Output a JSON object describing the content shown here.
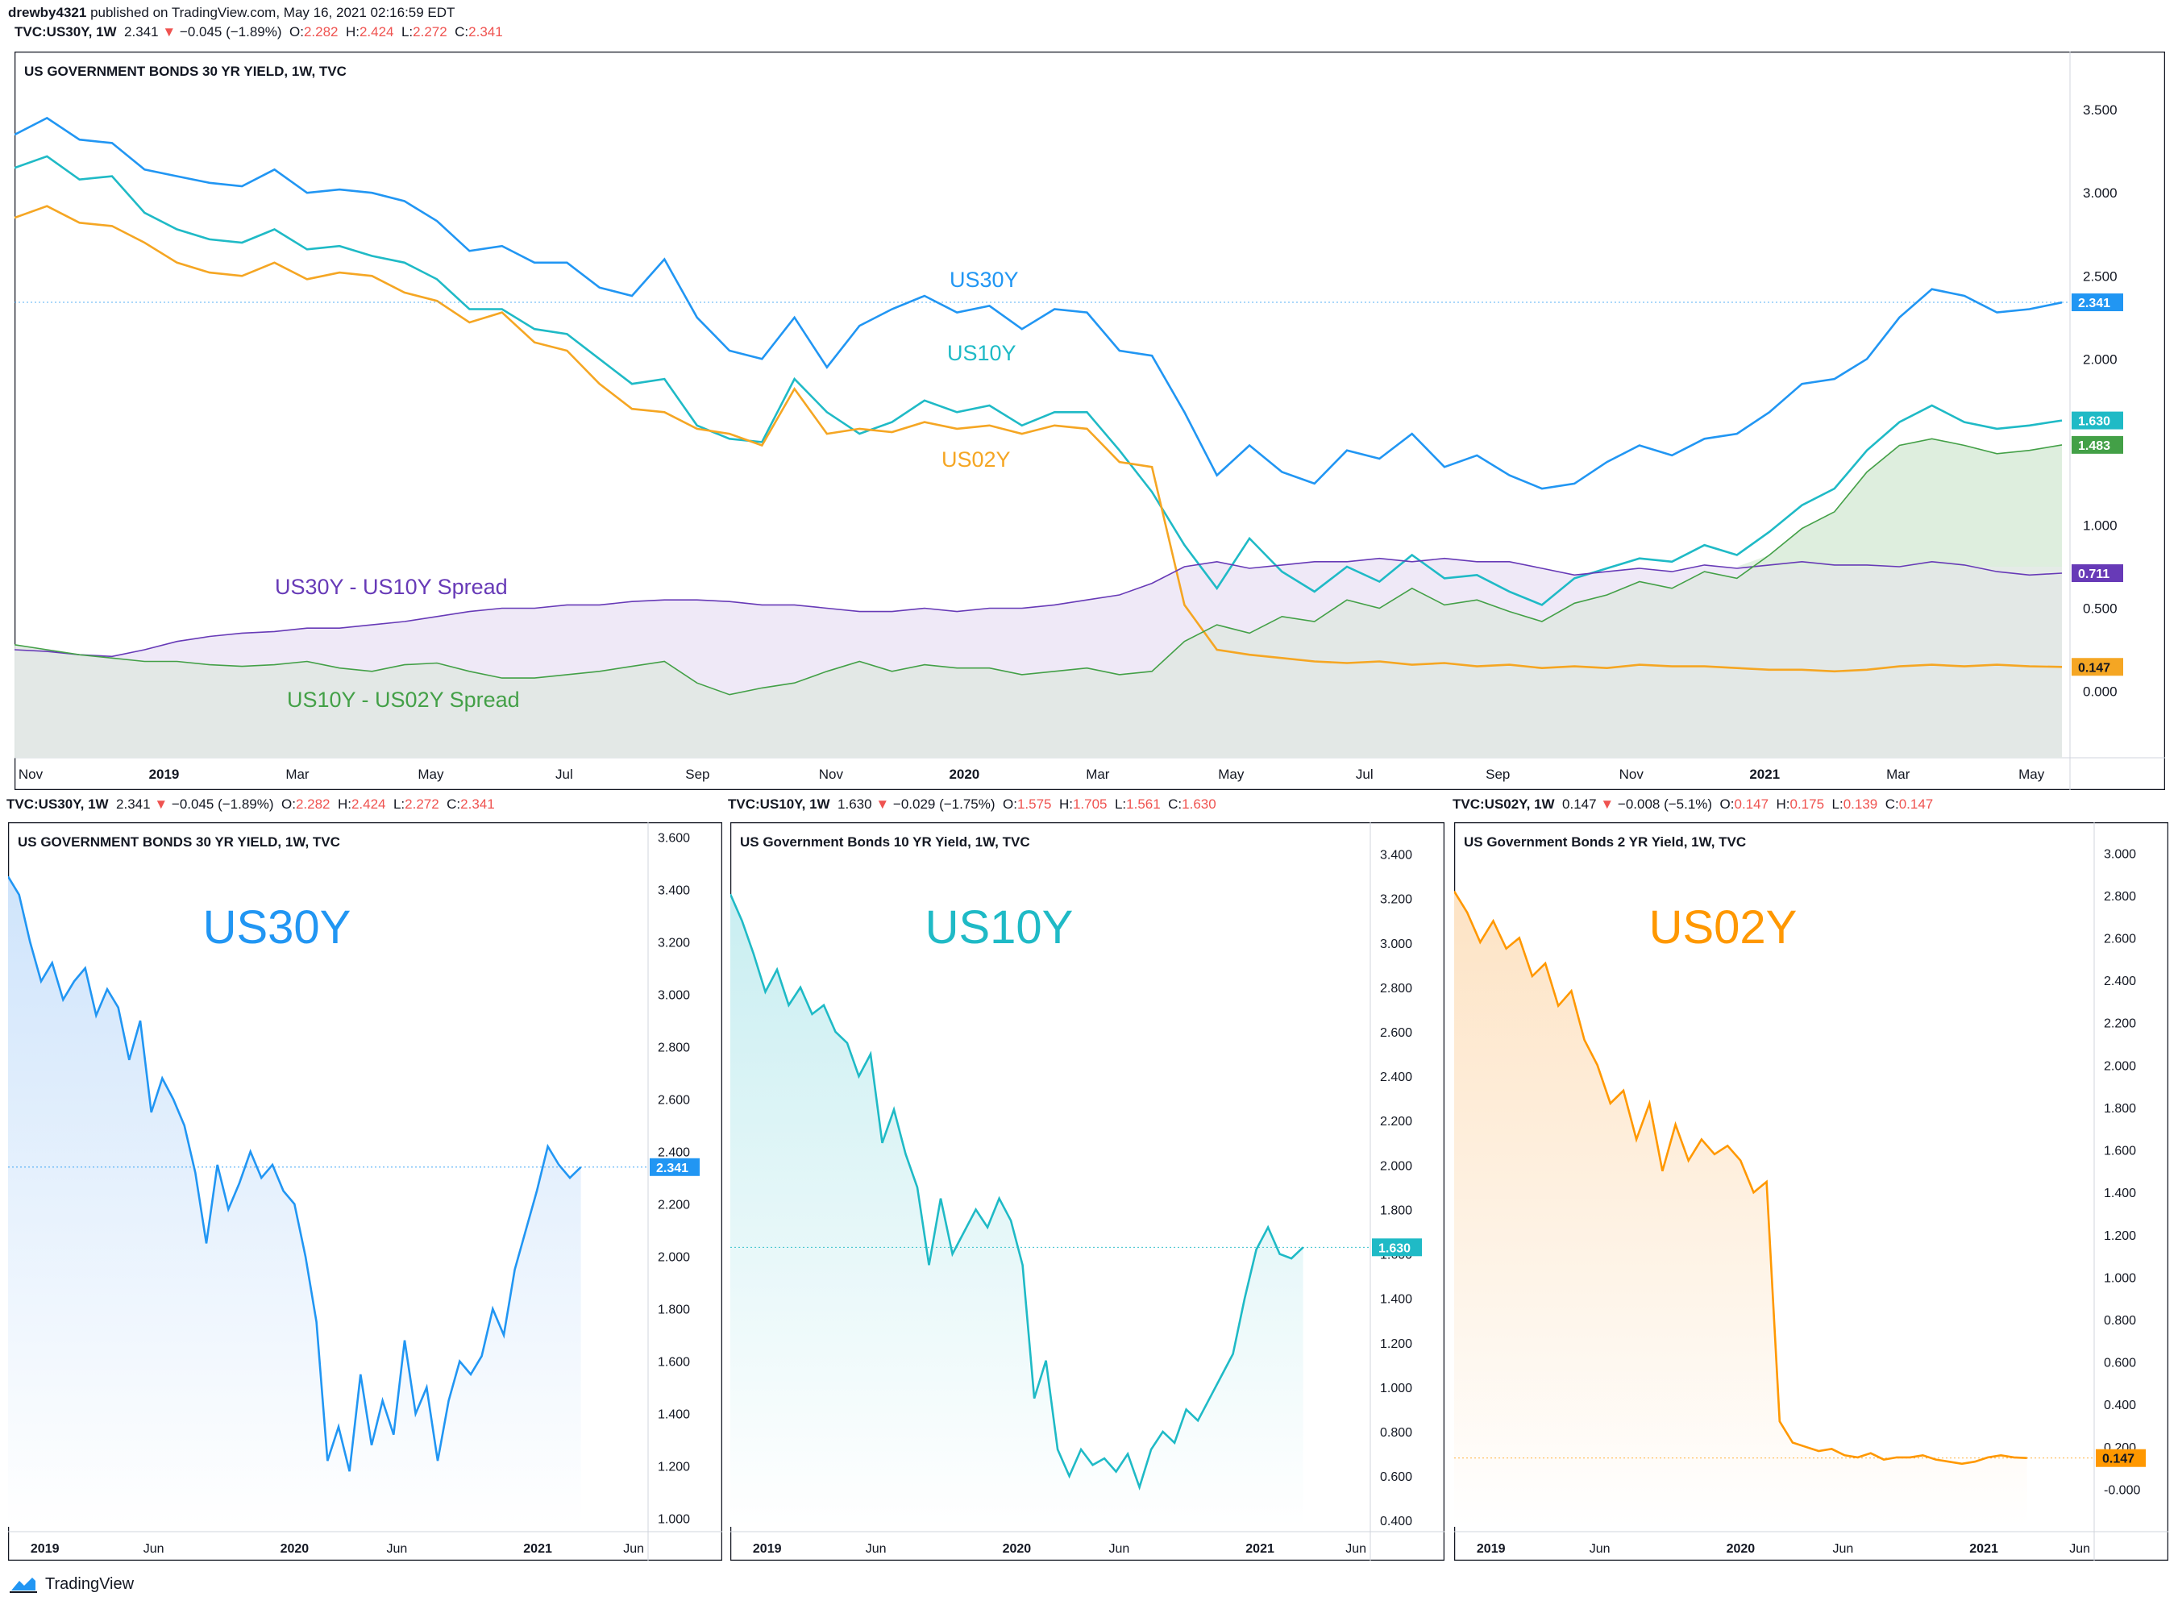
{
  "header": {
    "user": "drewby4321",
    "published": " published on TradingView.com, May 16, 2021 02:16:59 EDT"
  },
  "brand": "TradingView",
  "colors": {
    "us30": "#2196f3",
    "us10": "#1fbac6",
    "us02": "#f5a623",
    "us02fill": "#ff9800",
    "spread1": "#673ab7",
    "spread2": "#43a047",
    "axis": "#131722",
    "grid": "#f0f3fa"
  },
  "ohlc": [
    {
      "sym": "TVC:US30Y, 1W",
      "last": "2.341",
      "chg": "▼",
      "chgv": "−0.045 (−1.89%)",
      "o_l": "O:",
      "o": "2.282",
      "h_l": "H:",
      "h": "2.424",
      "l_l": "L:",
      "l": "2.272",
      "c_l": "C:",
      "c": "2.341"
    },
    {
      "sym": "TVC:US30Y, 1W",
      "last": "2.341",
      "chg": "▼",
      "chgv": "−0.045 (−1.89%)",
      "o_l": "O:",
      "o": "2.282",
      "h_l": "H:",
      "h": "2.424",
      "l_l": "L:",
      "l": "2.272",
      "c_l": "C:",
      "c": "2.341"
    },
    {
      "sym": "TVC:US10Y, 1W",
      "last": "1.630",
      "chg": "▼",
      "chgv": "−0.029 (−1.75%)",
      "o_l": "O:",
      "o": "1.575",
      "h_l": "H:",
      "h": "1.705",
      "l_l": "L:",
      "l": "1.561",
      "c_l": "C:",
      "c": "1.630"
    },
    {
      "sym": "TVC:US02Y, 1W",
      "last": "0.147",
      "chg": "▼",
      "chgv": "−0.008 (−5.1%)",
      "o_l": "O:",
      "o": "0.147",
      "h_l": "H:",
      "h": "0.175",
      "l_l": "L:",
      "l": "0.139",
      "c_l": "C:",
      "c": "0.147"
    }
  ],
  "chart_data": [
    {
      "type": "line",
      "title": "US GOVERNMENT BONDS 30 YR YIELD, 1W, TVC",
      "ylim": [
        -0.4,
        3.85
      ],
      "yticks": [
        "3.500",
        "3.000",
        "2.500",
        "2.000",
        "1.000",
        "0.500",
        "0.000"
      ],
      "xticks": [
        "Nov",
        "2019",
        "Mar",
        "May",
        "Jul",
        "Sep",
        "Nov",
        "2020",
        "Mar",
        "May",
        "Jul",
        "Sep",
        "Nov",
        "2021",
        "Mar",
        "May"
      ],
      "annotations": [
        "US30Y",
        "US10Y",
        "US02Y",
        "US30Y - US10Y Spread",
        "US10Y - US02Y Spread"
      ],
      "last_values": [
        "2.341",
        "1.630",
        "1.483",
        "0.711",
        "0.147"
      ],
      "series": [
        {
          "name": "US30Y",
          "values": [
            3.35,
            3.45,
            3.32,
            3.3,
            3.14,
            3.1,
            3.06,
            3.04,
            3.14,
            3.0,
            3.02,
            3.0,
            2.95,
            2.83,
            2.65,
            2.68,
            2.58,
            2.58,
            2.43,
            2.38,
            2.6,
            2.25,
            2.05,
            2.0,
            2.25,
            1.95,
            2.2,
            2.3,
            2.38,
            2.28,
            2.32,
            2.18,
            2.3,
            2.28,
            2.05,
            2.02,
            1.68,
            1.3,
            1.48,
            1.32,
            1.25,
            1.45,
            1.4,
            1.55,
            1.35,
            1.42,
            1.3,
            1.22,
            1.25,
            1.38,
            1.48,
            1.42,
            1.52,
            1.55,
            1.68,
            1.85,
            1.88,
            2.0,
            2.25,
            2.42,
            2.38,
            2.28,
            2.3,
            2.34
          ]
        },
        {
          "name": "US10Y",
          "values": [
            3.15,
            3.22,
            3.08,
            3.1,
            2.88,
            2.78,
            2.72,
            2.7,
            2.78,
            2.66,
            2.68,
            2.62,
            2.58,
            2.48,
            2.3,
            2.3,
            2.18,
            2.15,
            2.0,
            1.85,
            1.88,
            1.6,
            1.52,
            1.5,
            1.88,
            1.68,
            1.55,
            1.62,
            1.75,
            1.68,
            1.72,
            1.6,
            1.68,
            1.68,
            1.45,
            1.2,
            0.88,
            0.62,
            0.92,
            0.72,
            0.6,
            0.75,
            0.66,
            0.82,
            0.68,
            0.7,
            0.6,
            0.52,
            0.68,
            0.74,
            0.8,
            0.78,
            0.88,
            0.82,
            0.96,
            1.12,
            1.22,
            1.45,
            1.62,
            1.72,
            1.62,
            1.58,
            1.6,
            1.63
          ]
        },
        {
          "name": "US02Y",
          "values": [
            2.85,
            2.92,
            2.82,
            2.8,
            2.7,
            2.58,
            2.52,
            2.5,
            2.58,
            2.48,
            2.52,
            2.5,
            2.4,
            2.35,
            2.22,
            2.28,
            2.1,
            2.05,
            1.85,
            1.7,
            1.68,
            1.58,
            1.55,
            1.48,
            1.82,
            1.55,
            1.58,
            1.56,
            1.62,
            1.58,
            1.6,
            1.55,
            1.6,
            1.58,
            1.38,
            1.35,
            0.52,
            0.25,
            0.22,
            0.2,
            0.18,
            0.17,
            0.18,
            0.16,
            0.17,
            0.15,
            0.16,
            0.14,
            0.15,
            0.14,
            0.16,
            0.15,
            0.15,
            0.14,
            0.13,
            0.13,
            0.12,
            0.13,
            0.15,
            0.16,
            0.15,
            0.16,
            0.15,
            0.147
          ]
        },
        {
          "name": "US30Y - US10Y Spread",
          "values": [
            0.25,
            0.24,
            0.22,
            0.21,
            0.25,
            0.3,
            0.33,
            0.35,
            0.36,
            0.38,
            0.38,
            0.4,
            0.42,
            0.45,
            0.48,
            0.5,
            0.5,
            0.52,
            0.52,
            0.54,
            0.55,
            0.55,
            0.54,
            0.52,
            0.52,
            0.5,
            0.48,
            0.48,
            0.5,
            0.48,
            0.5,
            0.5,
            0.52,
            0.55,
            0.58,
            0.65,
            0.75,
            0.78,
            0.74,
            0.76,
            0.78,
            0.78,
            0.8,
            0.78,
            0.8,
            0.78,
            0.78,
            0.74,
            0.7,
            0.72,
            0.74,
            0.72,
            0.76,
            0.74,
            0.76,
            0.78,
            0.76,
            0.76,
            0.75,
            0.78,
            0.76,
            0.72,
            0.7,
            0.711
          ]
        },
        {
          "name": "US10Y - US02Y Spread",
          "values": [
            0.28,
            0.25,
            0.22,
            0.2,
            0.18,
            0.18,
            0.16,
            0.15,
            0.16,
            0.18,
            0.14,
            0.12,
            0.16,
            0.17,
            0.12,
            0.08,
            0.08,
            0.1,
            0.12,
            0.15,
            0.18,
            0.05,
            -0.02,
            0.02,
            0.05,
            0.12,
            0.18,
            0.12,
            0.16,
            0.14,
            0.14,
            0.1,
            0.12,
            0.14,
            0.1,
            0.12,
            0.3,
            0.4,
            0.35,
            0.45,
            0.42,
            0.55,
            0.5,
            0.62,
            0.52,
            0.55,
            0.48,
            0.42,
            0.53,
            0.58,
            0.66,
            0.62,
            0.72,
            0.68,
            0.82,
            0.98,
            1.08,
            1.32,
            1.48,
            1.52,
            1.48,
            1.43,
            1.45,
            1.483
          ]
        }
      ]
    },
    {
      "type": "area",
      "title": "US GOVERNMENT BONDS 30 YR YIELD, 1W, TVC",
      "big_label": "US30Y",
      "last_value": "2.341",
      "ylim": [
        0.95,
        3.62
      ],
      "yticks": [
        "3.600",
        "3.400",
        "3.200",
        "3.000",
        "2.800",
        "2.600",
        "2.400",
        "2.200",
        "2.000",
        "1.800",
        "1.600",
        "1.400",
        "1.200",
        "1.000"
      ],
      "xticks": [
        "2019",
        "Jun",
        "2020",
        "Jun",
        "2021",
        "Jun"
      ],
      "values": [
        3.45,
        3.38,
        3.2,
        3.05,
        3.12,
        2.98,
        3.05,
        3.1,
        2.92,
        3.02,
        2.95,
        2.75,
        2.9,
        2.55,
        2.68,
        2.6,
        2.5,
        2.32,
        2.05,
        2.35,
        2.18,
        2.28,
        2.4,
        2.3,
        2.35,
        2.25,
        2.2,
        2.0,
        1.75,
        1.22,
        1.35,
        1.18,
        1.55,
        1.28,
        1.45,
        1.32,
        1.68,
        1.4,
        1.5,
        1.22,
        1.45,
        1.6,
        1.55,
        1.62,
        1.8,
        1.7,
        1.95,
        2.1,
        2.25,
        2.42,
        2.35,
        2.3,
        2.341
      ]
    },
    {
      "type": "area",
      "title": "US Government Bonds 10 YR Yield, 1W, TVC",
      "big_label": "US10Y",
      "last_value": "1.630",
      "ylim": [
        0.35,
        3.5
      ],
      "yticks": [
        "3.400",
        "3.200",
        "3.000",
        "2.800",
        "2.600",
        "2.400",
        "2.200",
        "2.000",
        "1.800",
        "1.600",
        "1.400",
        "1.200",
        "1.000",
        "0.800",
        "0.600",
        "0.400"
      ],
      "xticks": [
        "2019",
        "Jun",
        "2020",
        "Jun",
        "2021",
        "Jun"
      ],
      "values": [
        3.22,
        3.1,
        2.95,
        2.78,
        2.88,
        2.72,
        2.8,
        2.68,
        2.72,
        2.6,
        2.55,
        2.4,
        2.5,
        2.1,
        2.25,
        2.05,
        1.9,
        1.55,
        1.85,
        1.6,
        1.7,
        1.8,
        1.72,
        1.85,
        1.75,
        1.55,
        0.95,
        1.12,
        0.72,
        0.6,
        0.72,
        0.65,
        0.68,
        0.62,
        0.7,
        0.55,
        0.72,
        0.8,
        0.75,
        0.9,
        0.85,
        0.95,
        1.05,
        1.15,
        1.4,
        1.62,
        1.72,
        1.6,
        1.58,
        1.63
      ]
    },
    {
      "type": "area",
      "title": "US Government Bonds 2 YR Yield, 1W, TVC",
      "big_label": "US02Y",
      "last_value": "0.147",
      "ylim": [
        -0.2,
        3.1
      ],
      "yticks": [
        "3.000",
        "2.800",
        "2.600",
        "2.400",
        "2.200",
        "2.000",
        "1.800",
        "1.600",
        "1.400",
        "1.200",
        "1.000",
        "0.800",
        "0.600",
        "0.400",
        "0.200",
        "-0.000"
      ],
      "xticks": [
        "2019",
        "Jun",
        "2020",
        "Jun",
        "2021",
        "Jun"
      ],
      "values": [
        2.82,
        2.72,
        2.58,
        2.68,
        2.55,
        2.6,
        2.42,
        2.48,
        2.28,
        2.35,
        2.12,
        2.0,
        1.82,
        1.88,
        1.65,
        1.82,
        1.5,
        1.72,
        1.55,
        1.65,
        1.58,
        1.62,
        1.55,
        1.4,
        1.45,
        0.32,
        0.22,
        0.2,
        0.18,
        0.19,
        0.16,
        0.15,
        0.17,
        0.14,
        0.15,
        0.15,
        0.16,
        0.14,
        0.13,
        0.12,
        0.13,
        0.15,
        0.16,
        0.15,
        0.147
      ]
    }
  ]
}
